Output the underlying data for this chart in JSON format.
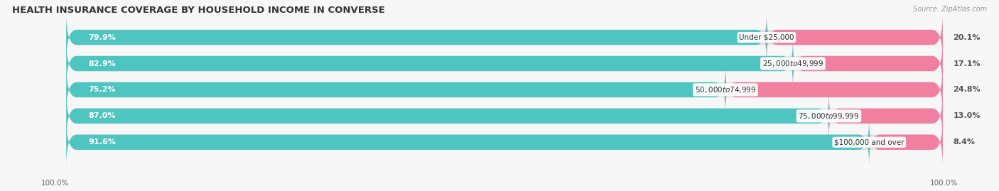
{
  "title": "HEALTH INSURANCE COVERAGE BY HOUSEHOLD INCOME IN CONVERSE",
  "source": "Source: ZipAtlas.com",
  "categories": [
    "Under $25,000",
    "$25,000 to $49,999",
    "$50,000 to $74,999",
    "$75,000 to $99,999",
    "$100,000 and over"
  ],
  "with_coverage": [
    79.9,
    82.9,
    75.2,
    87.0,
    91.6
  ],
  "without_coverage": [
    20.1,
    17.1,
    24.8,
    13.0,
    8.4
  ],
  "color_with": "#4ec5c1",
  "color_without": "#f07fa0",
  "bar_bg_color": "#e0e0e0",
  "bg_color": "#f7f7f7",
  "title_fontsize": 9.5,
  "label_fontsize": 8.0,
  "cat_fontsize": 7.5,
  "tick_fontsize": 7.5,
  "legend_fontsize": 8.5,
  "bar_height": 0.58,
  "bar_gap": 0.12,
  "xlim_left": -3,
  "xlim_right": 103,
  "tick_label_left": "100.0%",
  "tick_label_right": "100.0%"
}
